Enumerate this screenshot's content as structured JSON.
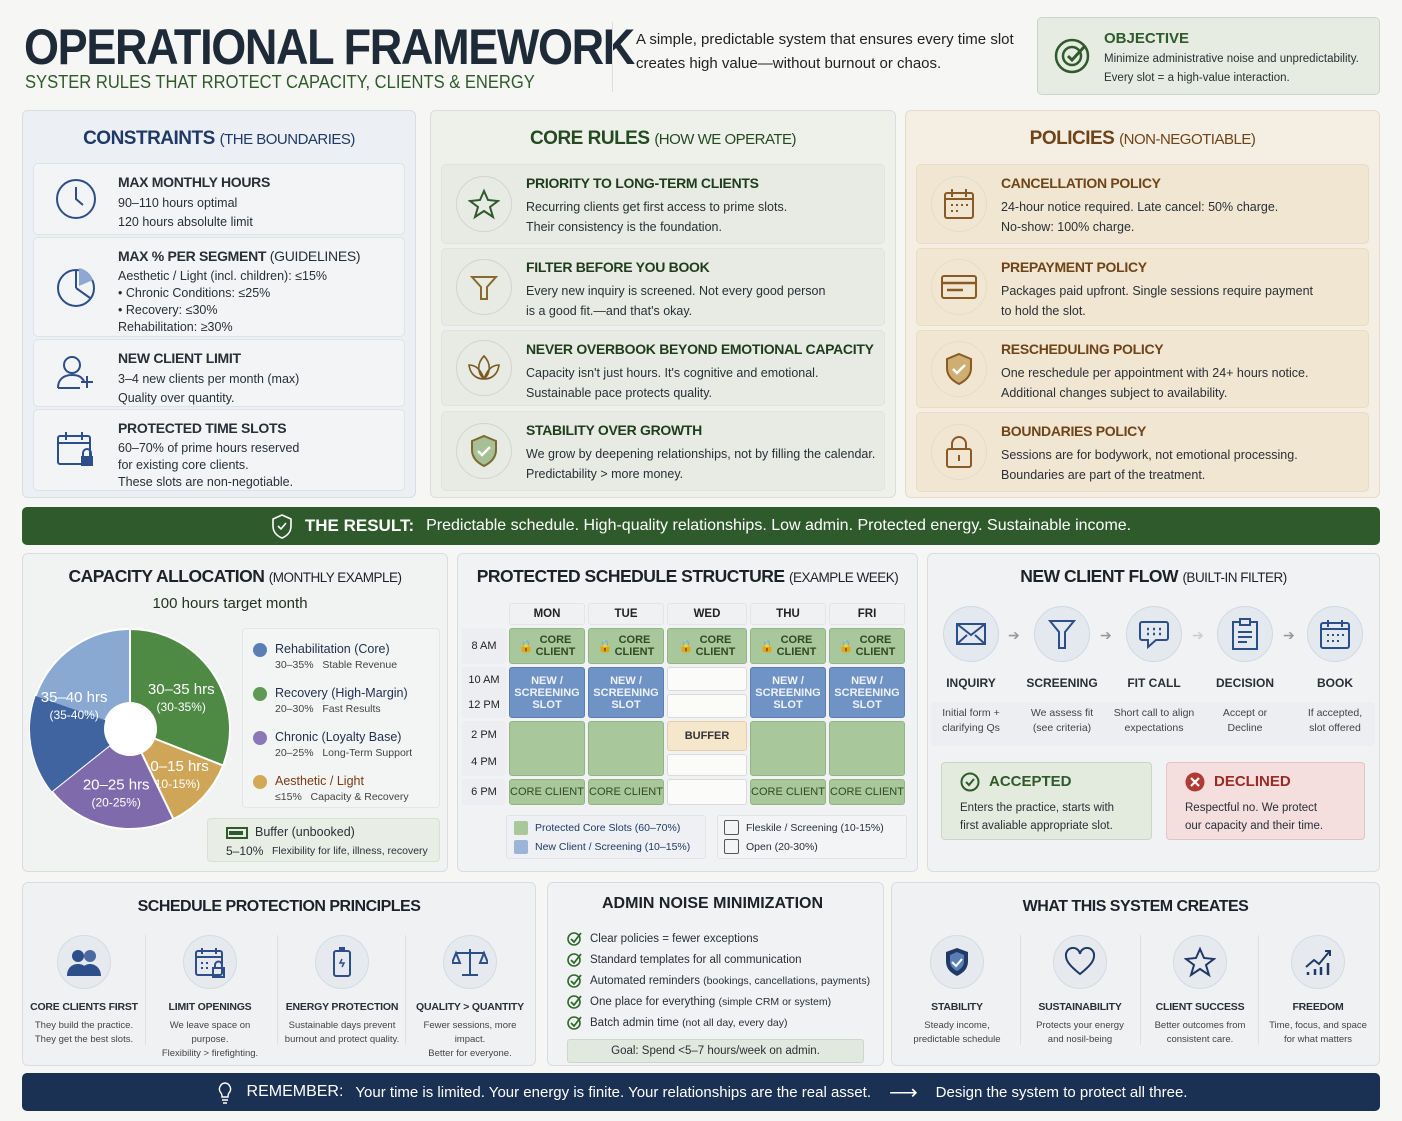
{
  "header": {
    "title": "OPERATIONAL FRAMEWORK",
    "subtitle": "SYSTER RULES THAT RROTECT CAPACITY, CLIENTS & ENERGY",
    "intro": "A simple, predictable system that ensures every time slot creates high value—without burnout or chaos.",
    "objective": {
      "title": "OBJECTIVE",
      "line1": "Minimize administrative noise and unpredictability.",
      "line2": "Every slot = a high-value interaction."
    }
  },
  "constraints": {
    "title": "CONSTRAINTS",
    "title_sub": "(THE BOUNDARIES)",
    "items": [
      {
        "icon": "clock-icon",
        "title": "MAX MONTHLY HOURS",
        "text": "90–110 hours optimal\n120 hours absolulte limit"
      },
      {
        "icon": "pie-chart-icon",
        "title": "MAX % PER SEGMENT",
        "title_sub": "(GUIDELINES)",
        "text": "Aesthetic / Light (incl. children): ≤15%\n• Chronic Conditions: ≤25%\n• Recovery: ≤30%\nRehabilitation: ≥30%"
      },
      {
        "icon": "add-user-icon",
        "title": "NEW CLIENT LIMIT",
        "text": "3–4 new clients per month (max)\nQuality over quantity."
      },
      {
        "icon": "calendar-lock-icon",
        "title": "PROTECTED TIME SLOTS",
        "text": "60–70% of prime hours reserved\nfor existing core clients.\nThese slots are non-negotiable."
      }
    ]
  },
  "core_rules": {
    "title": "CORE RULES",
    "title_sub": "(HOW WE OPERATE)",
    "items": [
      {
        "icon": "star-icon",
        "title": "PRIORITY TO LONG-TERM CLIENTS",
        "text": "Recurring clients get first access to prime slots.\nTheir consistency is the foundation."
      },
      {
        "icon": "filter-icon",
        "title": "FILTER BEFORE YOU BOOK",
        "text": "Every new inquiry is screened. Not every good person\nis a good fit.—and that's okay."
      },
      {
        "icon": "lotus-icon",
        "title": "NEVER OVERBOOK BEYOND EMOTIONAL CAPACITY",
        "text": "Capacity isn't just hours. It's cognitive and emotional.\nSustainable pace protects quality."
      },
      {
        "icon": "shield-check-icon",
        "title": "STABILITY OVER GROWTH",
        "text": "We grow by deepening relationships, not by filling the calendar.\nPredictability > more money."
      }
    ]
  },
  "policies": {
    "title": "POLICIES",
    "title_sub": "(NON-NEGOTIABLE)",
    "items": [
      {
        "icon": "calendar-icon",
        "title": "CANCELLATION POLICY",
        "text": "24-hour notice required. Late cancel: 50% charge.\nNo-show: 100% charge."
      },
      {
        "icon": "credit-card-icon",
        "title": "PREPAYMENT POLICY",
        "text": "Packages paid upfront. Single sessions require payment\nto hold the slot."
      },
      {
        "icon": "shield-check-icon",
        "title": "RESCHEDULING POLICY",
        "text": "One reschedule per appointment with 24+ hours notice.\nAdditional changes subject to availability."
      },
      {
        "icon": "lock-icon",
        "title": "BOUNDARIES POLICY",
        "text": "Sessions are for bodywork, not emotional processing.\nBoundaries are part of the treatment."
      }
    ]
  },
  "result_banner": {
    "label": "THE RESULT:",
    "text": "Predictable schedule. High-quality relationships. Low admin. Protected energy. Sustainable income."
  },
  "capacity": {
    "title": "CAPACITY ALLOCATION",
    "title_sub": "(MONTHLY EXAMPLE)",
    "subtitle": "100 hours target month",
    "legend": [
      {
        "name": "Rehabilitation (Core)",
        "range": "30–35%",
        "note": "Stable Revenue",
        "color": "#5b7fb5"
      },
      {
        "name": "Recovery (High-Margin)",
        "range": "20–30%",
        "note": "Fast Results",
        "color": "#5e9a55"
      },
      {
        "name": "Chronic (Loyalty Base)",
        "range": "20–25%",
        "note": "Long-Term Support",
        "color": "#8a78b8"
      },
      {
        "name": "Aesthetic / Light",
        "range": "≤15%",
        "note": "Capacity & Recovery",
        "color": "#d4a955"
      }
    ],
    "buffer": {
      "name": "Buffer (unbooked)",
      "range": "5–10%",
      "note": "Flexibility for life, illness, recovery"
    }
  },
  "chart_data": {
    "type": "pie",
    "slices": [
      {
        "label": "30–35 hrs",
        "sub": "(30-35%)",
        "value": 32.5,
        "color": "#4f8a45"
      },
      {
        "label": "10–15 hrs",
        "sub": "(10-15%)",
        "value": 12.5,
        "color": "#cfa557"
      },
      {
        "label": "20–25 hrs",
        "sub": "(20-25%)",
        "value": 22.5,
        "color": "#7f6aab"
      },
      {
        "label": "35–40 hrs",
        "sub": "(35-40%)",
        "value": 37.5,
        "color": "#89a9d3"
      }
    ]
  },
  "schedule": {
    "title": "PROTECTED SCHEDULE STRUCTURE",
    "title_sub": "(EXAMPLE WEEK)",
    "days": [
      "MON",
      "TUE",
      "WED",
      "THU",
      "FRI"
    ],
    "times": [
      "8 AM",
      "10 AM",
      "12 PM",
      "2 PM",
      "4 PM",
      "6 PM"
    ],
    "core_label": "CORE\nCLIENT",
    "core_label_inline": "CORE CLIENT",
    "new_label": "NEW /\nSCREENING\nSLOT",
    "buffer_label": "BUFFER",
    "legend": [
      "Protected Core Slots (60–70%)",
      "New Client / Screening (10–15%)",
      "Fleskile / Screening (10-15%)",
      "Open (20-30%)"
    ]
  },
  "flow": {
    "title": "NEW CLIENT FLOW",
    "title_sub": "(BUILT-IN FILTER)",
    "steps": [
      {
        "icon": "envelope-icon",
        "label": "INQUIRY",
        "desc": "Initial form +\nclarifying Qs"
      },
      {
        "icon": "filter-icon",
        "label": "SCREENING",
        "desc": "We assess fit\n(see criteria)"
      },
      {
        "icon": "chat-icon",
        "label": "FIT CALL",
        "desc": "Short call to align\nexpectations"
      },
      {
        "icon": "clipboard-icon",
        "label": "DECISION",
        "desc": "Accept or\nDecline"
      },
      {
        "icon": "calendar-icon",
        "label": "BOOK",
        "desc": "If accepted,\nslot offered"
      }
    ],
    "accepted": {
      "title": "ACCEPTED",
      "text": "Enters the practice, starts with\nfirst avaliable appropriate slot."
    },
    "declined": {
      "title": "DECLINED",
      "text": "Respectful no. We protect\nour capacity and their time."
    }
  },
  "principles": {
    "title": "SCHEDULE PROTECTION PRINCIPLES",
    "items": [
      {
        "icon": "people-icon",
        "label": "CORE CLIENTS FIRST",
        "desc": "They build the practice.\nThey get the best slots."
      },
      {
        "icon": "calendar-lock-icon",
        "label": "LIMIT OPENINGS",
        "desc": "We leave space on purpose.\nFlexibility > firefighting."
      },
      {
        "icon": "battery-icon",
        "label": "ENERGY PROTECTION",
        "desc": "Sustainable days prevent\nburnout and protect quality."
      },
      {
        "icon": "scales-icon",
        "label": "QUALITY > QUANTITY",
        "desc": "Fewer sessions, more impact.\nBetter for everyone."
      }
    ]
  },
  "admin": {
    "title": "ADMIN NOISE MINIMIZATION",
    "items": [
      {
        "main": "Clear policies = fewer exceptions",
        "sub": ""
      },
      {
        "main": "Standard templates for all communication",
        "sub": ""
      },
      {
        "main": "Automated reminders",
        "sub": "(bookings, cancellations, payments)"
      },
      {
        "main": "One place for everything",
        "sub": "(simple CRM or system)"
      },
      {
        "main": "Batch admin time",
        "sub": "(not all day, every day)"
      }
    ],
    "goal": "Goal: Spend <5–7 hours/week on admin."
  },
  "creates": {
    "title": "WHAT THIS SYSTEM CREATES",
    "items": [
      {
        "icon": "shield-check-icon",
        "label": "STABILITY",
        "desc": "Steady income,\npredictable schedule"
      },
      {
        "icon": "heart-icon",
        "label": "SUSTAINABILITY",
        "desc": "Protects your energy\nand nosil-being"
      },
      {
        "icon": "star-icon",
        "label": "CLIENT SUCCESS",
        "desc": "Better outcomes from\nconsistent care."
      },
      {
        "icon": "growth-chart-icon",
        "label": "FREEDOM",
        "desc": "Time, focus, and space\nfor what matters"
      }
    ]
  },
  "remember_banner": {
    "label": "REMEMBER:",
    "text": "Your time is limited. Your energy is finite. Your relationships are the real asset.",
    "arrow": "⟶",
    "cta": "Design the system to protect all three."
  },
  "colors": {
    "navy": "#1f3a66",
    "green": "#2f5a2b",
    "brown": "#7a4a1c",
    "banner_navy": "#1b3153"
  }
}
